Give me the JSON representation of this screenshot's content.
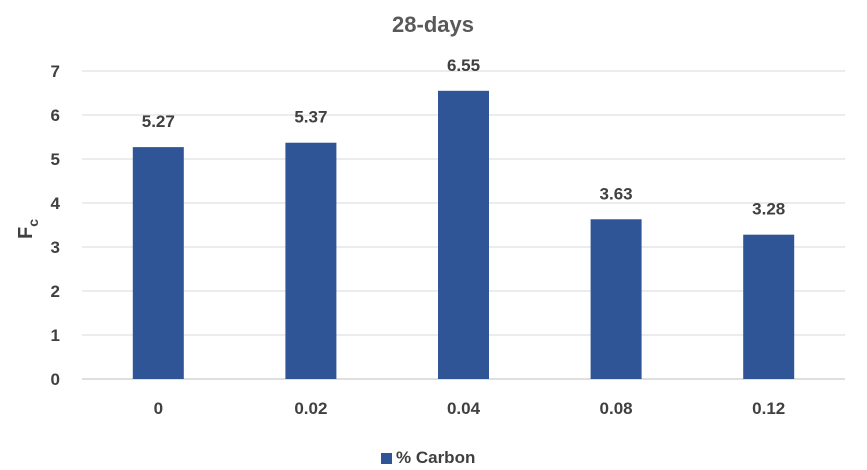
{
  "chart_data": {
    "type": "bar",
    "title": "28-days",
    "xlabel": "",
    "ylabel": "F",
    "ylabel_subscript": "c",
    "categories": [
      "0",
      "0.02",
      "0.04",
      "0.08",
      "0.12"
    ],
    "series": [
      {
        "name": "% Carbon",
        "values": [
          5.27,
          5.37,
          6.55,
          3.63,
          3.28
        ]
      }
    ],
    "data_labels": [
      "5.27",
      "5.37",
      "6.55",
      "3.63",
      "3.28"
    ],
    "ylim": [
      0,
      7
    ],
    "yticks": [
      0,
      1,
      2,
      3,
      4,
      5,
      6,
      7
    ],
    "grid": true,
    "legend_position": "bottom",
    "bar_color": "#2f5597"
  }
}
